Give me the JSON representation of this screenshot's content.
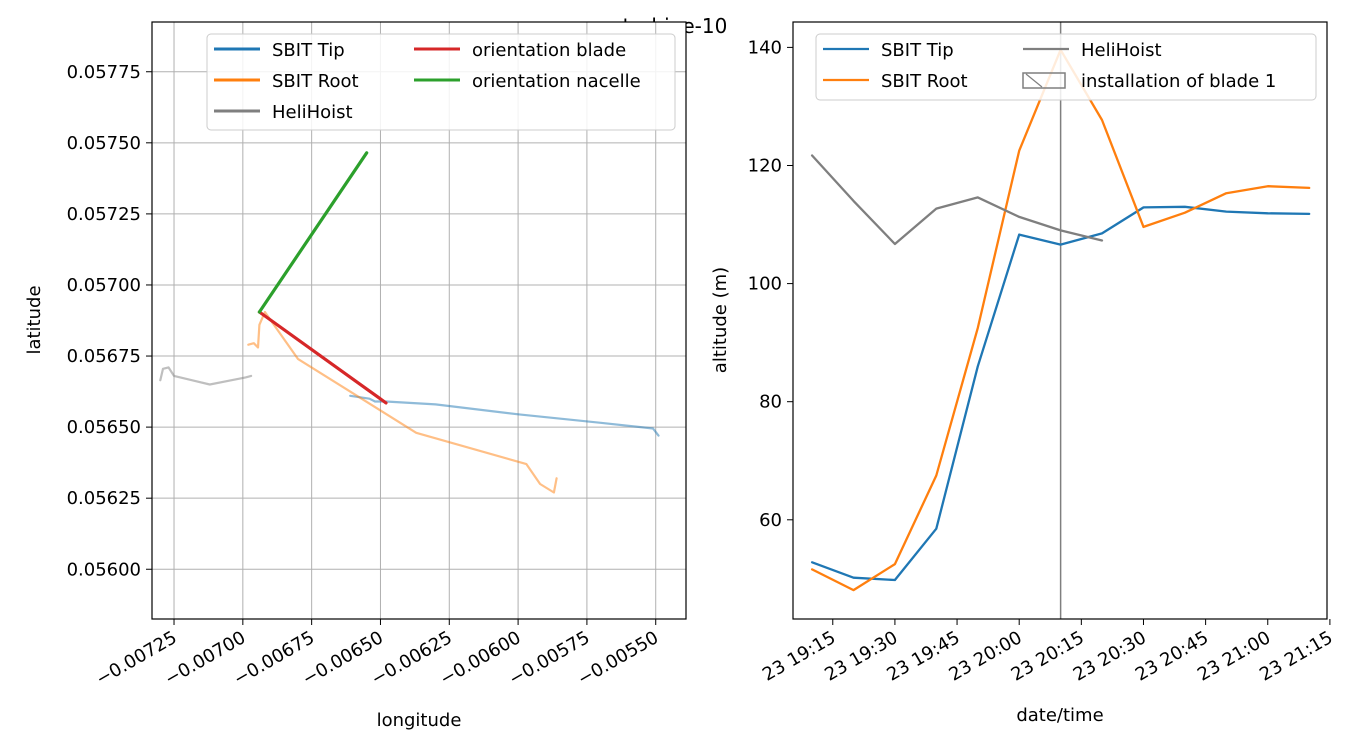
{
  "figure": {
    "title": "turbine-10"
  },
  "colors": {
    "sbit_tip": "#1f77b4",
    "sbit_root": "#ff7f0e",
    "helihoist": "#7f7f7f",
    "orientation_blade": "#d62728",
    "orientation_nacelle": "#2ca02c"
  },
  "chart_data": [
    {
      "type": "line",
      "panel": "map",
      "xlabel": "longitude",
      "ylabel": "latitude",
      "xlim": [
        -0.00733,
        -0.00539
      ],
      "ylim": [
        0.055825,
        0.057925
      ],
      "xticks": [
        -0.00725,
        -0.007,
        -0.00675,
        -0.0065,
        -0.00625,
        -0.006,
        -0.00575,
        -0.0055
      ],
      "xtick_labels": [
        "−0.00725",
        "−0.00700",
        "−0.00675",
        "−0.00650",
        "−0.00625",
        "−0.00600",
        "−0.00575",
        "−0.00550"
      ],
      "yticks": [
        0.056,
        0.05625,
        0.0565,
        0.05675,
        0.057,
        0.05725,
        0.0575,
        0.05775
      ],
      "ytick_labels": [
        "0.05600",
        "0.05625",
        "0.05650",
        "0.05675",
        "0.05700",
        "0.05725",
        "0.05750",
        "0.05775"
      ],
      "grid": true,
      "legend": {
        "placement": "top-right",
        "columns": 2
      },
      "legend_entries": [
        "SBIT Tip",
        "SBIT Root",
        "HeliHoist",
        "orientation blade",
        "orientation nacelle"
      ],
      "series": [
        {
          "name": "SBIT Tip",
          "color_key": "sbit_tip",
          "faded": true,
          "points": [
            [
              -0.00661,
              0.05661
            ],
            [
              -0.00654,
              0.0566
            ],
            [
              -0.00652,
              0.05659
            ],
            [
              -0.00648,
              0.05659
            ],
            [
              -0.0063,
              0.05658
            ],
            [
              -0.006,
              0.056545
            ],
            [
              -0.0057,
              0.056515
            ],
            [
              -0.00551,
              0.056495
            ],
            [
              -0.00549,
              0.05647
            ]
          ]
        },
        {
          "name": "SBIT Root",
          "color_key": "sbit_root",
          "faded": true,
          "points": [
            [
              -0.00698,
              0.05679
            ],
            [
              -0.00696,
              0.056795
            ],
            [
              -0.006945,
              0.05678
            ],
            [
              -0.00694,
              0.05686
            ],
            [
              -0.00692,
              0.056905
            ],
            [
              -0.0068,
              0.05674
            ],
            [
              -0.00637,
              0.05648
            ],
            [
              -0.00597,
              0.05637
            ],
            [
              -0.00592,
              0.0563
            ],
            [
              -0.00587,
              0.05627
            ],
            [
              -0.00586,
              0.05632
            ]
          ]
        },
        {
          "name": "HeliHoist",
          "color_key": "helihoist",
          "faded": true,
          "points": [
            [
              -0.0073,
              0.056665
            ],
            [
              -0.00729,
              0.056705
            ],
            [
              -0.00727,
              0.05671
            ],
            [
              -0.00725,
              0.05668
            ],
            [
              -0.00712,
              0.05665
            ],
            [
              -0.00699,
              0.056675
            ],
            [
              -0.00697,
              0.05668
            ]
          ]
        },
        {
          "name": "orientation blade",
          "color_key": "orientation_blade",
          "faded": false,
          "points": [
            [
              -0.00694,
              0.056905
            ],
            [
              -0.00648,
              0.056585
            ]
          ]
        },
        {
          "name": "orientation nacelle",
          "color_key": "orientation_nacelle",
          "faded": false,
          "points": [
            [
              -0.00694,
              0.056905
            ],
            [
              -0.00655,
              0.057465
            ]
          ]
        }
      ]
    },
    {
      "type": "line",
      "panel": "altitude",
      "xlabel": "date/time",
      "ylabel": "altitude (m)",
      "x_unit": "minutes after 23 19:00",
      "xlim": [
        5.4,
        134.3
      ],
      "ylim": [
        43.2,
        144.3
      ],
      "xticks": [
        15,
        30,
        45,
        60,
        75,
        90,
        105,
        120,
        135
      ],
      "xtick_labels": [
        "23 19:15",
        "23 19:30",
        "23 19:45",
        "23 20:00",
        "23 20:15",
        "23 20:30",
        "23 20:45",
        "23 21:00",
        "23 21:15"
      ],
      "yticks": [
        60,
        80,
        100,
        120,
        140
      ],
      "ytick_labels": [
        "60",
        "80",
        "100",
        "120",
        "140"
      ],
      "grid": false,
      "legend": {
        "placement": "top",
        "columns": 2
      },
      "legend_entries": [
        "SBIT Tip",
        "SBIT Root",
        "HeliHoist",
        "installation of blade 1"
      ],
      "installation_marker_label": "installation of blade 1",
      "installation_time": 70,
      "series": [
        {
          "name": "SBIT Tip",
          "color_key": "sbit_tip",
          "x": [
            10,
            20,
            30,
            40,
            50,
            60,
            70,
            80,
            90,
            100,
            110,
            120,
            130
          ],
          "y": [
            52.8,
            50.2,
            49.8,
            58.5,
            86.0,
            108.3,
            106.6,
            108.5,
            112.9,
            113.0,
            112.2,
            111.9,
            111.8
          ]
        },
        {
          "name": "SBIT Root",
          "color_key": "sbit_root",
          "x": [
            10,
            20,
            30,
            40,
            50,
            60,
            70,
            80,
            90,
            100,
            110,
            120,
            130
          ],
          "y": [
            51.6,
            48.1,
            52.5,
            67.5,
            92.5,
            122.5,
            139.6,
            127.7,
            109.6,
            112.0,
            115.3,
            116.5,
            116.2
          ]
        },
        {
          "name": "HeliHoist",
          "color_key": "helihoist",
          "x": [
            10,
            20,
            30,
            40,
            50,
            60,
            70,
            80
          ],
          "y": [
            121.7,
            114.0,
            106.7,
            112.7,
            114.6,
            111.3,
            109.0,
            107.3
          ]
        }
      ]
    }
  ]
}
